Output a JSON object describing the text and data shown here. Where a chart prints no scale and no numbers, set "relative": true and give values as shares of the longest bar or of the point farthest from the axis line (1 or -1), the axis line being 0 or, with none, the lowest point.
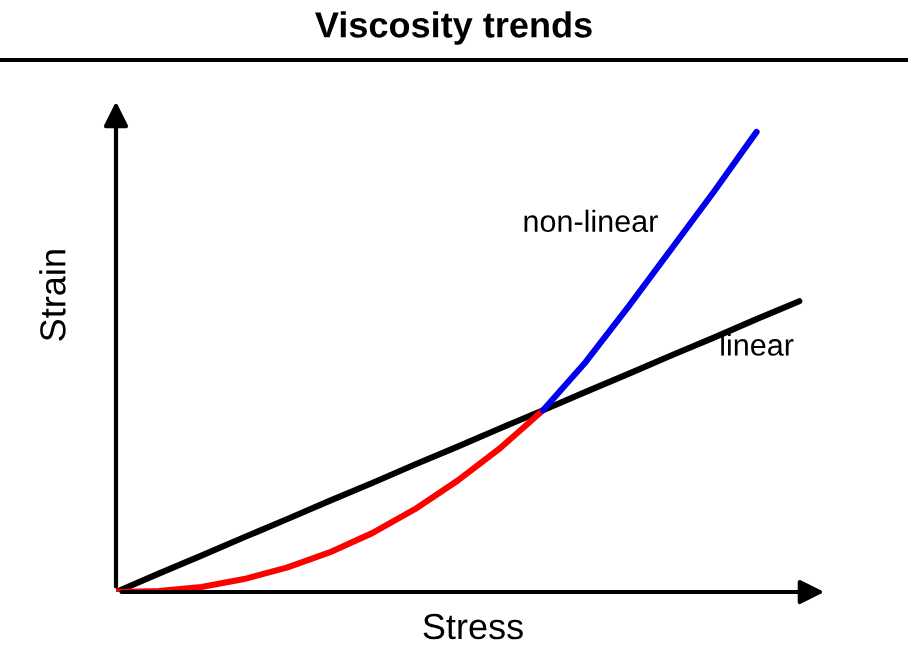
{
  "chart_data": {
    "type": "line",
    "title": "Viscosity trends",
    "xlabel": "Stress",
    "ylabel": "Strain",
    "relative": true,
    "legend": false,
    "grid": false,
    "categories": [
      null,
      null,
      null,
      null,
      null,
      null,
      null,
      null,
      null,
      null,
      null,
      null,
      null,
      null,
      null,
      null,
      null
    ],
    "series": [
      {
        "name": "linear",
        "color": "#000000",
        "values": [
          0,
          0.04,
          0.079,
          0.119,
          0.158,
          0.198,
          0.237,
          0.277,
          0.316,
          0.356,
          0.395,
          0.435,
          0.474,
          0.514,
          0.553,
          0.593,
          0.632
        ]
      },
      {
        "color": "#ff0000",
        "values": [
          0,
          0.002,
          0.011,
          0.028,
          0.053,
          0.086,
          0.128,
          0.18,
          0.242,
          0.313,
          0.395,
          null,
          null,
          null,
          null,
          null,
          null
        ]
      },
      {
        "name": "non-linear",
        "color": "#0000ee",
        "values": [
          null,
          null,
          null,
          null,
          null,
          null,
          null,
          null,
          null,
          null,
          0.395,
          0.5,
          0.62,
          0.745,
          0.87,
          1.0,
          null
        ]
      }
    ]
  }
}
